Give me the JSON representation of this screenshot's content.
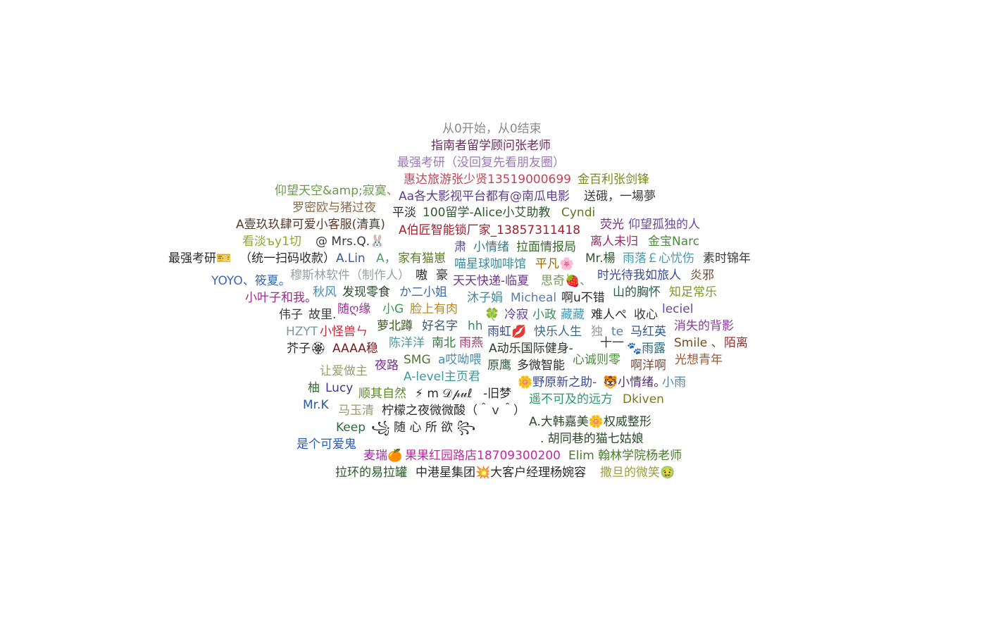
{
  "word_cloud": {
    "words": [
      {
        "text": "从0开始，从0结束",
        "color": "#8a8a8a"
      },
      {
        "text": "指南者留学顾问张老师",
        "color": "#6e2a5f"
      },
      {
        "text": "最强考研（没回复先看朋友圈）",
        "color": "#9a7ab3"
      },
      {
        "text": "惠达旅游张少贤13519000699",
        "color": "#c0455a"
      },
      {
        "text": "金百利张剑锋",
        "color": "#7a8a20"
      },
      {
        "text": "仰望天空&amp;寂寞、",
        "color": "#6a9a4a"
      },
      {
        "text": "Aa各大影视平台都有@南瓜电影",
        "color": "#5a3e8a"
      },
      {
        "text": "送硪，一場夢",
        "color": "#3a3a3a"
      },
      {
        "text": "罗密欧与猪过夜",
        "color": "#8a6a4a"
      },
      {
        "text": "平淡",
        "color": "#2a2a2a"
      },
      {
        "text": "100留学-Alice小艾助教",
        "color": "#2e5a2e"
      },
      {
        "text": "Cyndi",
        "color": "#5a7a1a"
      },
      {
        "text": "A壹玖玖肆可爱小客服(清真)",
        "color": "#5a3a2a"
      },
      {
        "text": "A伯匠智能锁厂家_13857311418",
        "color": "#a02030"
      },
      {
        "text": "荧光",
        "color": "#7a2a8a"
      },
      {
        "text": "仰望孤独的人",
        "color": "#6a4a9a"
      },
      {
        "text": "看淡ъy1切",
        "color": "#8aaa2a"
      },
      {
        "text": "@ Mrs.Q.🐰",
        "color": "#3a3a3a"
      },
      {
        "text": "肃",
        "color": "#5a4aa0"
      },
      {
        "text": "小情绪",
        "color": "#3a7a8a"
      },
      {
        "text": "拉面情报局",
        "color": "#3a6a2a"
      },
      {
        "text": "离人未归",
        "color": "#a02a6a"
      },
      {
        "text": "金宝Narc",
        "color": "#4a8a3a"
      },
      {
        "text": "最强考研🎫",
        "color": "#2a2a2a"
      },
      {
        "text": "（统一扫码收款）",
        "color": "#2a2a2a"
      },
      {
        "text": "A.Lin",
        "color": "#3a5aa0"
      },
      {
        "text": "A，",
        "color": "#4a9a6a"
      },
      {
        "text": "家有猫崽",
        "color": "#5a7a2a"
      },
      {
        "text": "喵星球咖啡馆",
        "color": "#3a8a9a"
      },
      {
        "text": "平凡🌸",
        "color": "#9a6a0a"
      },
      {
        "text": "Mr.楊",
        "color": "#2a5a2a"
      },
      {
        "text": "雨落￡心忧伤",
        "color": "#4a9ab0"
      },
      {
        "text": "素时锦年",
        "color": "#3a3a3a"
      },
      {
        "text": "YOYO、筱夏。",
        "color": "#3a6ab0"
      },
      {
        "text": "穆斯林软件（制作人）",
        "color": "#9aa0a8"
      },
      {
        "text": "嗷",
        "color": "#2a2a2a"
      },
      {
        "text": "豪",
        "color": "#2a2a2a"
      },
      {
        "text": "天天快递-临夏",
        "color": "#6a3a8a"
      },
      {
        "text": "思奇🍓、",
        "color": "#7a9a5a"
      },
      {
        "text": "时光待我如旅人",
        "color": "#3a4aa0"
      },
      {
        "text": "炎邪",
        "color": "#7a4a2a"
      },
      {
        "text": "小叶子和我。",
        "color": "#a02a8a"
      },
      {
        "text": "秋风",
        "color": "#4a8ab0"
      },
      {
        "text": "发现零食",
        "color": "#2a4a2a"
      },
      {
        "text": "か二小姐",
        "color": "#3a6ab0"
      },
      {
        "text": "沐子娟",
        "color": "#3a8a9a"
      },
      {
        "text": "Micheal",
        "color": "#5a7ab0"
      },
      {
        "text": "啊u不错",
        "color": "#2a2a2a"
      },
      {
        "text": "山的胸怀",
        "color": "#2a5a4a"
      },
      {
        "text": "知足常乐",
        "color": "#7a9a2a"
      },
      {
        "text": "伟子",
        "color": "#3a3a3a"
      },
      {
        "text": "故里.",
        "color": "#3a3a3a"
      },
      {
        "text": "随ღ缘",
        "color": "#a02a9a"
      },
      {
        "text": "小G",
        "color": "#3a9a4a"
      },
      {
        "text": "脸上有肉",
        "color": "#c08a1a"
      },
      {
        "text": "🍀",
        "color": "#3a3a3a"
      },
      {
        "text": "冷寂",
        "color": "#5a3aa0"
      },
      {
        "text": "小政",
        "color": "#3a8a5a"
      },
      {
        "text": "藏藏",
        "color": "#4a9ab0"
      },
      {
        "text": "难人ぺ",
        "color": "#2a2a2a"
      },
      {
        "text": "收心",
        "color": "#3a3a3a"
      },
      {
        "text": "leciel",
        "color": "#6a4aa0"
      },
      {
        "text": "HZYT",
        "color": "#7a9aa0"
      },
      {
        "text": "小怪兽ㄣ",
        "color": "#c02a3a"
      },
      {
        "text": "萝北蹲",
        "color": "#3a5a1a"
      },
      {
        "text": "好名字",
        "color": "#3a5a7a"
      },
      {
        "text": "hh",
        "color": "#3a8a5a"
      },
      {
        "text": "雨虹💋",
        "color": "#3a4a8a"
      },
      {
        "text": "快乐人生",
        "color": "#3a6a8a"
      },
      {
        "text": "独",
        "color": "#9a9aa0"
      },
      {
        "text": "te",
        "color": "#5a7aa0"
      },
      {
        "text": "马红英",
        "color": "#2a5a9a"
      },
      {
        "text": "消失的背影",
        "color": "#8a3aa0"
      },
      {
        "text": "芥子🏵",
        "color": "#2a2a2a"
      },
      {
        "text": "AAAA稳",
        "color": "#7a1a1a"
      },
      {
        "text": "陈洋洋",
        "color": "#4a9aa0"
      },
      {
        "text": "南北",
        "color": "#2a7a3a"
      },
      {
        "text": "雨燕",
        "color": "#a03a6a"
      },
      {
        "text": "A动乐国际健身-",
        "color": "#2a3a2a"
      },
      {
        "text": "十一",
        "color": "#3a3a3a"
      },
      {
        "text": "🐾雨露",
        "color": "#2a6a7a"
      },
      {
        "text": "Smile 、",
        "color": "#7a4a1a"
      },
      {
        "text": "陌离",
        "color": "#a02a2a"
      },
      {
        "text": "让爱做主",
        "color": "#9aa06a"
      },
      {
        "text": "夜路",
        "color": "#7a2a9a"
      },
      {
        "text": "SMG",
        "color": "#4a7a2a"
      },
      {
        "text": "a哎呦喂",
        "color": "#4a8ab0"
      },
      {
        "text": "原鹰",
        "color": "#2a5a3a"
      },
      {
        "text": "多微智能",
        "color": "#2a2a2a"
      },
      {
        "text": "心诚则零",
        "color": "#4a8a3a"
      },
      {
        "text": "啊洋啊",
        "color": "#7a4a3a"
      },
      {
        "text": "光想青年",
        "color": "#9a5a3a"
      },
      {
        "text": "A-level主页君",
        "color": "#3a9a9a"
      },
      {
        "text": "🐯小情绪。",
        "color": "#5a2a8a"
      },
      {
        "text": "小雨",
        "color": "#4a8ab0"
      },
      {
        "text": "🌼野原新之助-",
        "color": "#3a4a9a"
      },
      {
        "text": "柚",
        "color": "#3a6a3a"
      },
      {
        "text": "Lucy",
        "color": "#3a3a9a"
      },
      {
        "text": "顺其自然",
        "color": "#5a8a2a"
      },
      {
        "text": "⚡ m 𝒟𝓅𝓊ℓ",
        "color": "#2a2a2a"
      },
      {
        "text": "-旧梦",
        "color": "#2a2a2a"
      },
      {
        "text": "Mr.K",
        "color": "#2a5aa0"
      },
      {
        "text": "马玉清",
        "color": "#9a9a6a"
      },
      {
        "text": "柠檬之夜微微酸（＾ｖ＾）",
        "color": "#2a2a2a"
      },
      {
        "text": "遥不可及的远方",
        "color": "#2a9a6a"
      },
      {
        "text": "Dkiven",
        "color": "#7a7a1a"
      },
      {
        "text": "A.大韩嘉美🌼权威整形",
        "color": "#2a4a2a"
      },
      {
        "text": "Keep",
        "color": "#2a6a3a"
      },
      {
        "text": "꧁ 随 心 所 欲 ꧂",
        "color": "#2a2a2a"
      },
      {
        "text": "是个可爱鬼",
        "color": "#2a5ab0"
      },
      {
        "text": ". 胡同巷的猫七姑娘",
        "color": "#2a4a2a"
      },
      {
        "text": "麦瑞🍊",
        "color": "#9a2aa0"
      },
      {
        "text": "果果红园路店18709300200",
        "color": "#c02aa0"
      },
      {
        "text": "Elim 翰林学院杨老师",
        "color": "#4a7a2a"
      },
      {
        "text": "拉环的易拉罐",
        "color": "#2a5a2a"
      },
      {
        "text": "中港星集团💥大客户经理杨婉容",
        "color": "#2a2a2a"
      },
      {
        "text": "撒旦的微笑🤢",
        "color": "#9aa03a"
      }
    ]
  }
}
